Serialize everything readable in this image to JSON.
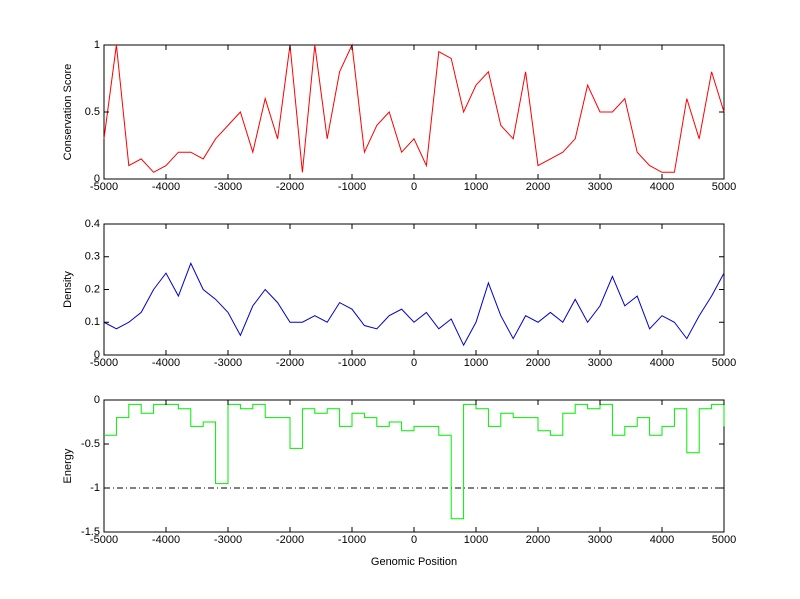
{
  "chart_data": [
    {
      "type": "line",
      "ylabel": "Conservation Score",
      "x": [
        -5000,
        -4800,
        -4600,
        -4400,
        -4200,
        -4000,
        -3800,
        -3600,
        -3400,
        -3200,
        -3000,
        -2800,
        -2600,
        -2400,
        -2200,
        -2000,
        -1800,
        -1600,
        -1400,
        -1200,
        -1000,
        -800,
        -600,
        -400,
        -200,
        0,
        200,
        400,
        600,
        800,
        1000,
        1200,
        1400,
        1600,
        1800,
        2000,
        2200,
        2400,
        2600,
        2800,
        3000,
        3200,
        3400,
        3600,
        3800,
        4000,
        4200,
        4400,
        4600,
        4800,
        5000
      ],
      "series": [
        {
          "color": "#ff0000",
          "values": [
            0.3,
            1,
            0.1,
            0.15,
            0.05,
            0.1,
            0.2,
            0.2,
            0.15,
            0.3,
            0.4,
            0.5,
            0.2,
            0.6,
            0.3,
            1,
            0.05,
            1,
            0.3,
            0.8,
            1,
            0.2,
            0.4,
            0.5,
            0.2,
            0.3,
            0.1,
            0.95,
            0.9,
            0.5,
            0.7,
            0.8,
            0.4,
            0.3,
            0.8,
            0.1,
            0.15,
            0.2,
            0.3,
            0.7,
            0.5,
            0.5,
            0.6,
            0.2,
            0.1,
            0.05,
            0.05,
            0.6,
            0.3,
            0.8,
            0.5
          ]
        }
      ],
      "xlim": [
        -5000,
        5000
      ],
      "xticks": [
        -5000,
        -4000,
        -3000,
        -2000,
        -1000,
        0,
        1000,
        2000,
        3000,
        4000,
        5000
      ],
      "ylim": [
        0,
        1
      ],
      "yticks": [
        0,
        0.5,
        1
      ]
    },
    {
      "type": "line",
      "ylabel": "Density",
      "x": [
        -5000,
        -4800,
        -4600,
        -4400,
        -4200,
        -4000,
        -3800,
        -3600,
        -3400,
        -3200,
        -3000,
        -2800,
        -2600,
        -2400,
        -2200,
        -2000,
        -1800,
        -1600,
        -1400,
        -1200,
        -1000,
        -800,
        -600,
        -400,
        -200,
        0,
        200,
        400,
        600,
        800,
        1000,
        1200,
        1400,
        1600,
        1800,
        2000,
        2200,
        2400,
        2600,
        2800,
        3000,
        3200,
        3400,
        3600,
        3800,
        4000,
        4200,
        4400,
        4600,
        4800,
        5000
      ],
      "series": [
        {
          "color": "#0000cc",
          "values": [
            0.1,
            0.08,
            0.1,
            0.13,
            0.2,
            0.25,
            0.18,
            0.28,
            0.2,
            0.17,
            0.13,
            0.06,
            0.15,
            0.2,
            0.16,
            0.1,
            0.1,
            0.12,
            0.1,
            0.16,
            0.14,
            0.09,
            0.08,
            0.12,
            0.14,
            0.1,
            0.13,
            0.08,
            0.11,
            0.03,
            0.1,
            0.22,
            0.12,
            0.05,
            0.12,
            0.1,
            0.13,
            0.1,
            0.17,
            0.1,
            0.15,
            0.24,
            0.15,
            0.18,
            0.08,
            0.12,
            0.1,
            0.05,
            0.12,
            0.18,
            0.25
          ]
        }
      ],
      "xlim": [
        -5000,
        5000
      ],
      "xticks": [
        -5000,
        -4000,
        -3000,
        -2000,
        -1000,
        0,
        1000,
        2000,
        3000,
        4000,
        5000
      ],
      "ylim": [
        0,
        0.4
      ],
      "yticks": [
        0,
        0.1,
        0.2,
        0.3,
        0.4
      ]
    },
    {
      "type": "line",
      "ylabel": "Energy",
      "xlabel": "Genomic Position",
      "step": true,
      "hline": -1,
      "x": [
        -5000,
        -4800,
        -4600,
        -4400,
        -4200,
        -4000,
        -3800,
        -3600,
        -3400,
        -3200,
        -3000,
        -2800,
        -2600,
        -2400,
        -2200,
        -2000,
        -1800,
        -1600,
        -1400,
        -1200,
        -1000,
        -800,
        -600,
        -400,
        -200,
        0,
        200,
        400,
        600,
        800,
        1000,
        1200,
        1400,
        1600,
        1800,
        2000,
        2200,
        2400,
        2600,
        2800,
        3000,
        3200,
        3400,
        3600,
        3800,
        4000,
        4200,
        4400,
        4600,
        4800,
        5000
      ],
      "series": [
        {
          "color": "#00ee00",
          "values": [
            -0.4,
            -0.2,
            -0.05,
            -0.15,
            -0.05,
            -0.05,
            -0.1,
            -0.3,
            -0.25,
            -0.95,
            -0.05,
            -0.1,
            -0.05,
            -0.2,
            -0.2,
            -0.55,
            -0.1,
            -0.15,
            -0.1,
            -0.3,
            -0.15,
            -0.2,
            -0.3,
            -0.25,
            -0.35,
            -0.3,
            -0.3,
            -0.4,
            -1.35,
            -0.05,
            -0.1,
            -0.3,
            -0.15,
            -0.2,
            -0.2,
            -0.35,
            -0.4,
            -0.15,
            -0.05,
            -0.1,
            -0.05,
            -0.4,
            -0.3,
            -0.2,
            -0.4,
            -0.3,
            -0.1,
            -0.6,
            -0.1,
            -0.05,
            -0.3
          ]
        }
      ],
      "xlim": [
        -5000,
        5000
      ],
      "xticks": [
        -5000,
        -4000,
        -3000,
        -2000,
        -1000,
        0,
        1000,
        2000,
        3000,
        4000,
        5000
      ],
      "ylim": [
        -1.5,
        0
      ],
      "yticks": [
        -1.5,
        -1,
        -0.5,
        0
      ]
    }
  ]
}
